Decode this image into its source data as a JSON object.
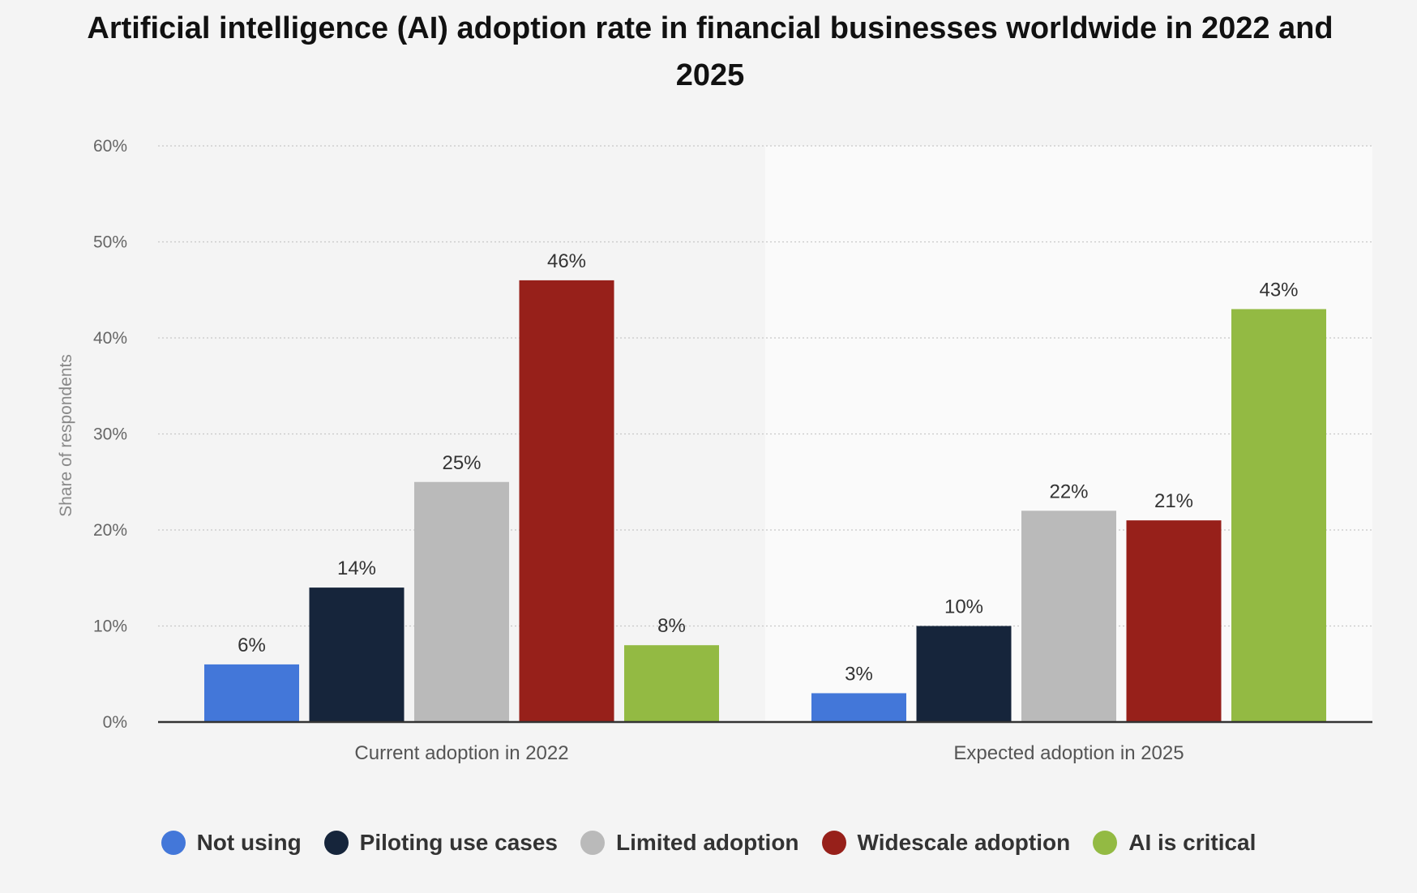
{
  "chart_data": {
    "type": "bar",
    "title": "Artificial intelligence (AI) adoption rate in financial businesses worldwide in 2022 and 2025",
    "xlabel": "",
    "ylabel": "Share of respondents",
    "ylim": [
      0,
      60
    ],
    "yticks": [
      0,
      10,
      20,
      30,
      40,
      50,
      60
    ],
    "ytick_labels": [
      "0%",
      "10%",
      "20%",
      "30%",
      "40%",
      "50%",
      "60%"
    ],
    "categories": [
      "Current adoption in 2022",
      "Expected adoption in 2025"
    ],
    "series": [
      {
        "name": "Not using",
        "color": "#4377d9",
        "values": [
          6,
          3
        ],
        "labels": [
          "6%",
          "3%"
        ]
      },
      {
        "name": "Piloting use cases",
        "color": "#16253b",
        "values": [
          14,
          10
        ],
        "labels": [
          "14%",
          "10%"
        ]
      },
      {
        "name": "Limited adoption",
        "color": "#bababa",
        "values": [
          25,
          22
        ],
        "labels": [
          "25%",
          "22%"
        ]
      },
      {
        "name": "Widescale adoption",
        "color": "#97201a",
        "values": [
          46,
          21
        ],
        "labels": [
          "46%",
          "21%"
        ]
      },
      {
        "name": "AI is critical",
        "color": "#93ba43",
        "values": [
          8,
          43
        ],
        "labels": [
          "8%",
          "43%"
        ]
      }
    ],
    "grid": true,
    "legend_position": "bottom"
  }
}
